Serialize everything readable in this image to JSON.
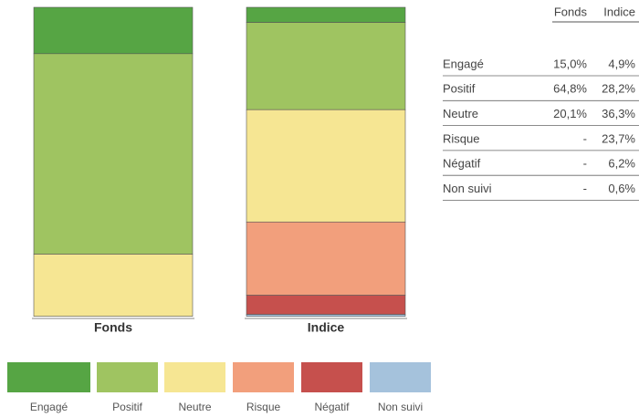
{
  "chart_data": {
    "type": "stacked_bar",
    "categories": [
      "Fonds",
      "Indice"
    ],
    "ylim": [
      0,
      100
    ],
    "series": [
      {
        "name": "Engagé",
        "color": "#56a544",
        "values": [
          15.0,
          4.9
        ],
        "value_labels": [
          "15,0%",
          "4,9%"
        ]
      },
      {
        "name": "Positif",
        "color": "#9fc461",
        "values": [
          64.8,
          28.2
        ],
        "value_labels": [
          "64,8%",
          "28,2%"
        ]
      },
      {
        "name": "Neutre",
        "color": "#f6e693",
        "values": [
          20.1,
          36.3
        ],
        "value_labels": [
          "20,1%",
          "36,3%"
        ]
      },
      {
        "name": "Risque",
        "color": "#f29f7c",
        "values": [
          null,
          23.7
        ],
        "value_labels": [
          "-",
          "23,7%"
        ]
      },
      {
        "name": "Négatif",
        "color": "#c6504d",
        "values": [
          null,
          6.2
        ],
        "value_labels": [
          "-",
          "6,2%"
        ]
      },
      {
        "name": "Non suivi",
        "color": "#a5c2dc",
        "values": [
          null,
          0.6
        ],
        "value_labels": [
          "-",
          "0,6%"
        ]
      }
    ]
  }
}
